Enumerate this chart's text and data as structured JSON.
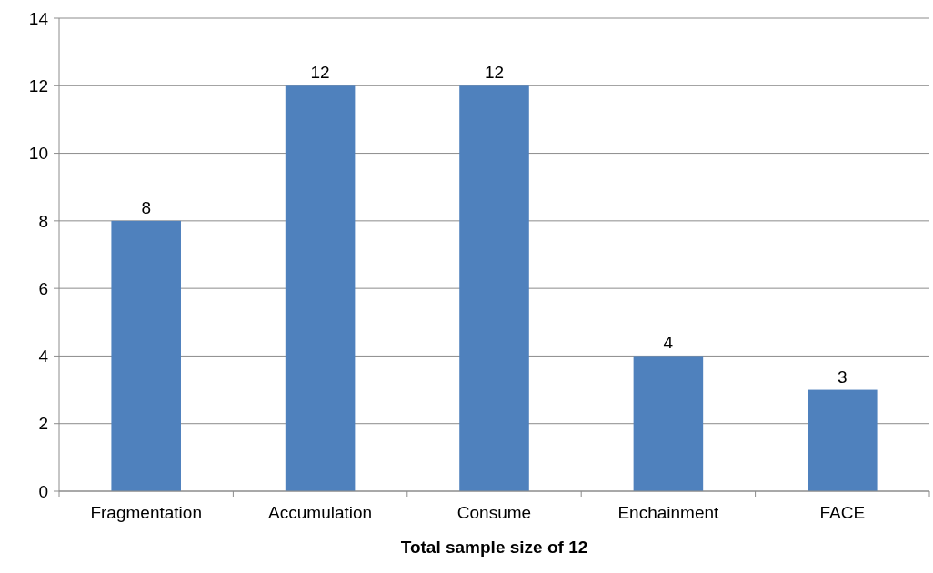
{
  "chart_data": {
    "type": "bar",
    "xlabel": "Total sample size of 12",
    "categories": [
      "Fragmentation",
      "Accumulation",
      "Consume",
      "Enchainment",
      "FACE"
    ],
    "values": [
      8,
      12,
      12,
      4,
      3
    ],
    "color": "#4f81bd",
    "ylim": [
      0,
      14
    ],
    "yticks": [
      0,
      2,
      4,
      6,
      8,
      10,
      12,
      14
    ],
    "grid": "y",
    "data_labels": true
  }
}
